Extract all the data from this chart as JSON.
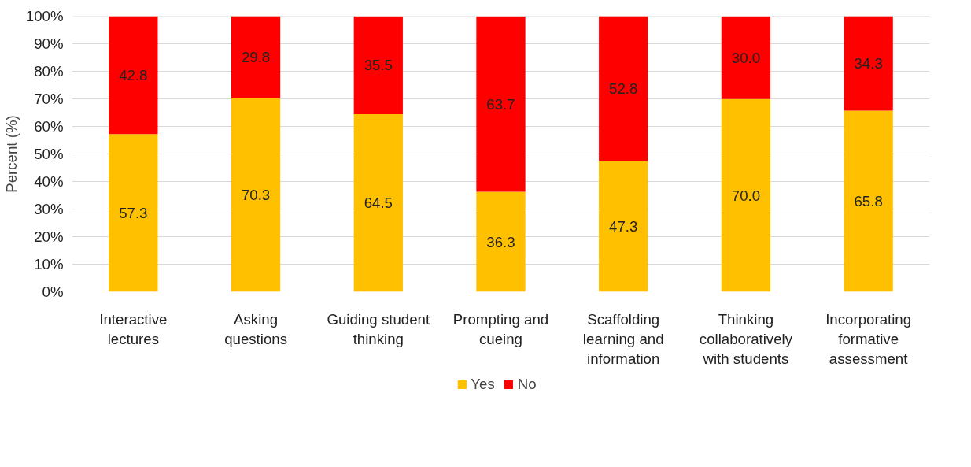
{
  "chart_data": {
    "type": "bar",
    "stacked": true,
    "ylabel": "Percent (%)",
    "categories": [
      "Interactive lectures",
      "Asking questions",
      "Guiding student thinking",
      "Prompting and cueing",
      "Scaffolding learning and information",
      "Thinking collaboratively with students",
      "Incorporating formative assessment"
    ],
    "series": [
      {
        "name": "Yes",
        "color": "#ffc000",
        "values": [
          57.3,
          70.3,
          64.5,
          36.3,
          47.3,
          70.0,
          65.8
        ],
        "value_labels": [
          "57.3",
          "70.3",
          "64.5",
          "36.3",
          "47.3",
          "70.0",
          "65.8"
        ]
      },
      {
        "name": "No",
        "color": "#ff0000",
        "values": [
          42.8,
          29.8,
          35.5,
          63.7,
          52.8,
          30.0,
          34.3
        ],
        "value_labels": [
          "42.8",
          "29.8",
          "35.5",
          "63.7",
          "52.8",
          "30.0",
          "34.3"
        ]
      }
    ],
    "ylim": [
      0,
      100.1
    ],
    "yticks": [
      {
        "value": 0,
        "label": "0%"
      },
      {
        "value": 10,
        "label": "10%"
      },
      {
        "value": 20,
        "label": "20%"
      },
      {
        "value": 30,
        "label": "30%"
      },
      {
        "value": 40,
        "label": "40%"
      },
      {
        "value": 50,
        "label": "50%"
      },
      {
        "value": 60,
        "label": "60%"
      },
      {
        "value": 70,
        "label": "70%"
      },
      {
        "value": 80,
        "label": "80%"
      },
      {
        "value": 90,
        "label": "90%"
      },
      {
        "value": 100,
        "label": "100%"
      }
    ],
    "grid": "y",
    "legend": "bottom"
  }
}
